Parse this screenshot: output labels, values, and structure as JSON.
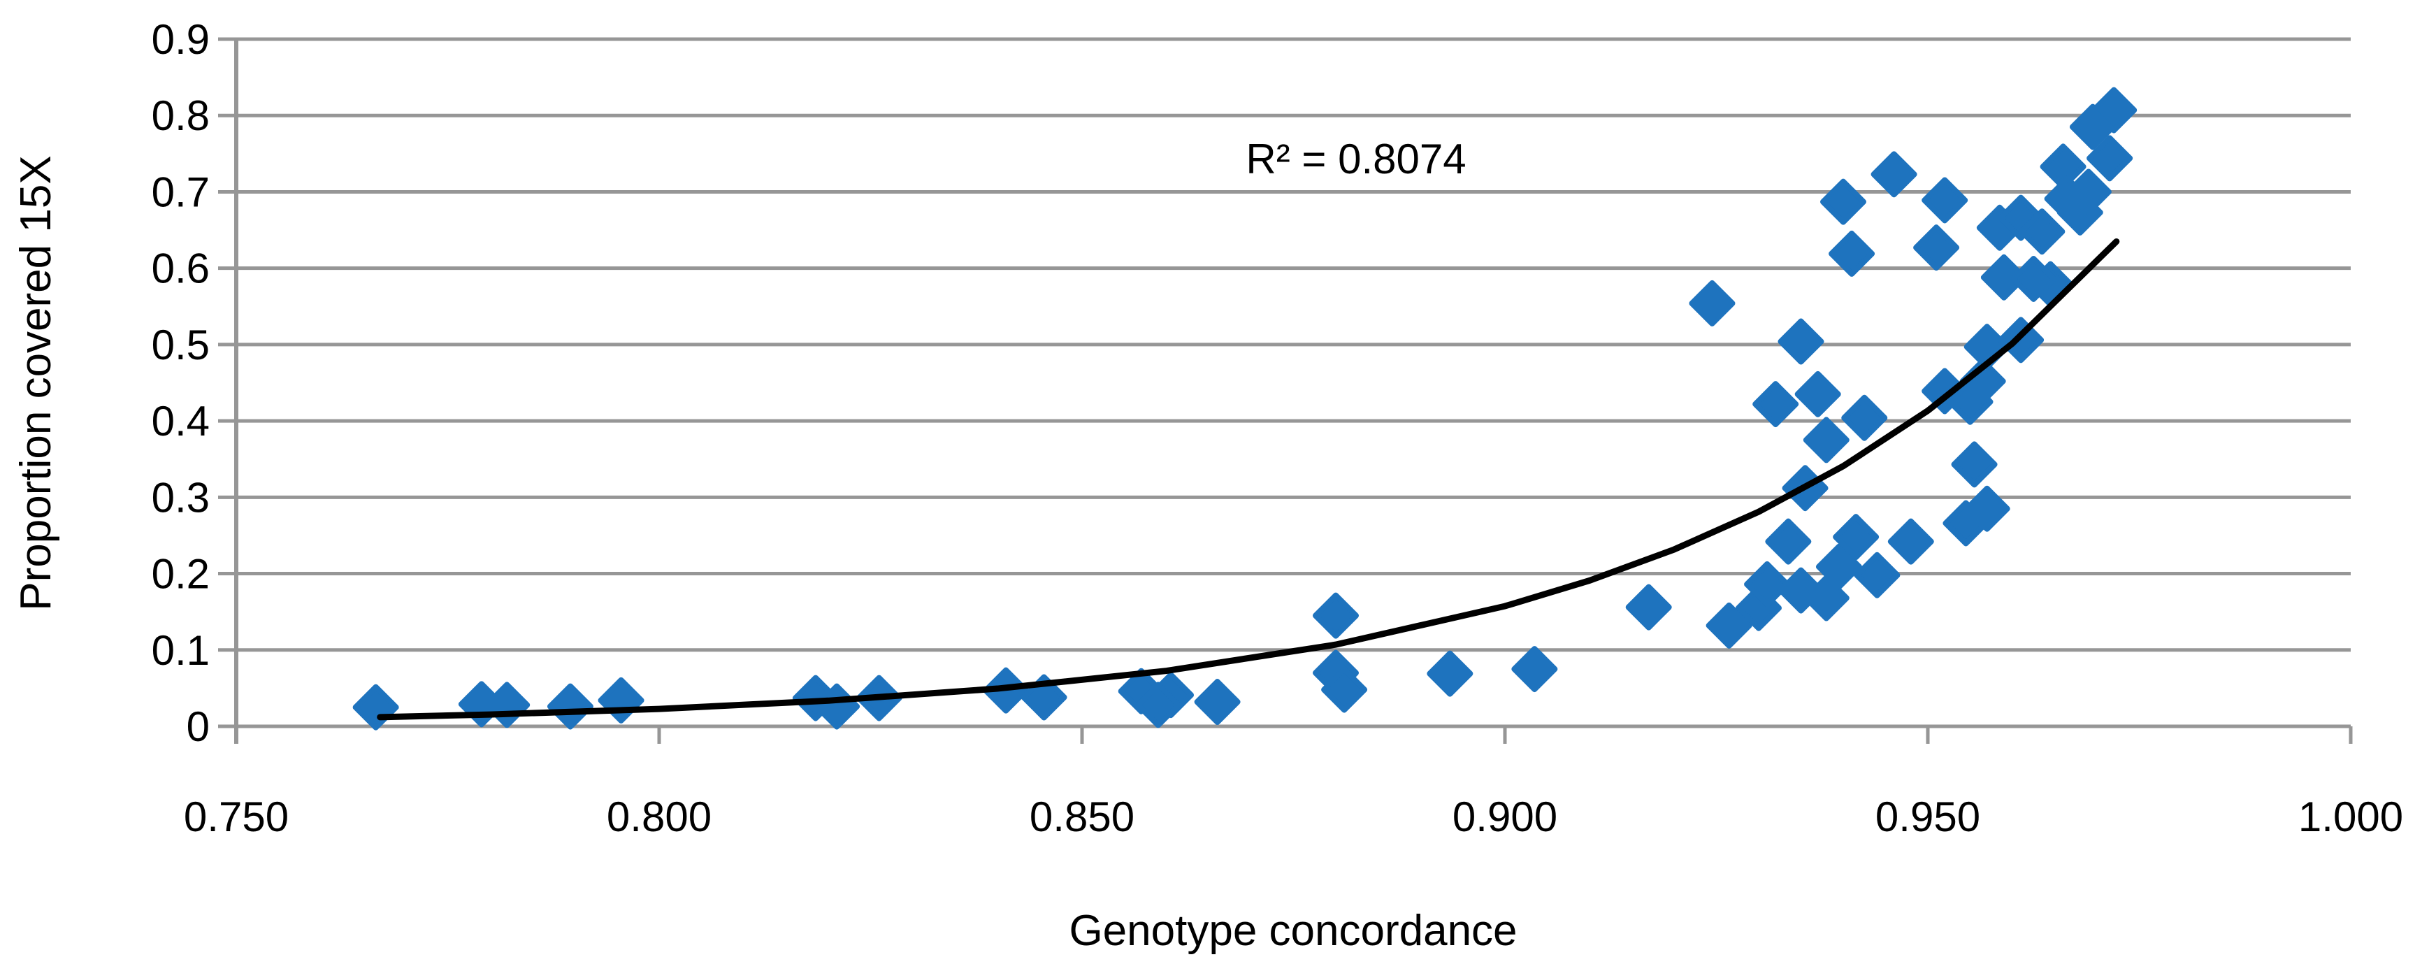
{
  "chart_data": {
    "type": "scatter",
    "title": "",
    "xlabel": "Genotype concordance",
    "ylabel": "Proportion  covered 15X",
    "annotation": "R² = 0.8074",
    "xlim": [
      0.75,
      1.0
    ],
    "ylim": [
      0,
      0.9
    ],
    "x_ticks": [
      "0.750",
      "0.800",
      "0.850",
      "0.900",
      "0.950",
      "1.000"
    ],
    "y_ticks": [
      "0",
      "0.1",
      "0.2",
      "0.3",
      "0.4",
      "0.5",
      "0.6",
      "0.7",
      "0.8",
      "0.9"
    ],
    "grid": "horizontal",
    "legend_position": "none",
    "marker": "diamond",
    "marker_color": "#1E73BE",
    "trendline_color": "#000000",
    "gridline_color": "#969696",
    "points": [
      [
        0.7665,
        0.025
      ],
      [
        0.779,
        0.029
      ],
      [
        0.782,
        0.028
      ],
      [
        0.7895,
        0.026
      ],
      [
        0.7955,
        0.034
      ],
      [
        0.8185,
        0.037
      ],
      [
        0.821,
        0.026
      ],
      [
        0.826,
        0.037
      ],
      [
        0.841,
        0.047
      ],
      [
        0.8455,
        0.038
      ],
      [
        0.857,
        0.046
      ],
      [
        0.8605,
        0.041
      ],
      [
        0.859,
        0.028
      ],
      [
        0.866,
        0.032
      ],
      [
        0.88,
        0.145
      ],
      [
        0.88,
        0.07
      ],
      [
        0.881,
        0.048
      ],
      [
        0.8935,
        0.069
      ],
      [
        0.9035,
        0.075
      ],
      [
        0.917,
        0.156
      ],
      [
        0.9265,
        0.132
      ],
      [
        0.93,
        0.155
      ],
      [
        0.931,
        0.186
      ],
      [
        0.935,
        0.178
      ],
      [
        0.938,
        0.168
      ],
      [
        0.9335,
        0.242
      ],
      [
        0.9395,
        0.209
      ],
      [
        0.9415,
        0.248
      ],
      [
        0.944,
        0.198
      ],
      [
        0.948,
        0.242
      ],
      [
        0.9355,
        0.312
      ],
      [
        0.932,
        0.422
      ],
      [
        0.937,
        0.435
      ],
      [
        0.938,
        0.375
      ],
      [
        0.9425,
        0.404
      ],
      [
        0.935,
        0.504
      ],
      [
        0.9245,
        0.554
      ],
      [
        0.9545,
        0.266
      ],
      [
        0.957,
        0.285
      ],
      [
        0.9555,
        0.343
      ],
      [
        0.952,
        0.439
      ],
      [
        0.955,
        0.425
      ],
      [
        0.9565,
        0.452
      ],
      [
        0.957,
        0.497
      ],
      [
        0.961,
        0.506
      ],
      [
        0.9645,
        0.579
      ],
      [
        0.959,
        0.588
      ],
      [
        0.9625,
        0.586
      ],
      [
        0.941,
        0.619
      ],
      [
        0.951,
        0.627
      ],
      [
        0.9585,
        0.653
      ],
      [
        0.961,
        0.666
      ],
      [
        0.9635,
        0.648
      ],
      [
        0.94,
        0.687
      ],
      [
        0.946,
        0.723
      ],
      [
        0.952,
        0.689
      ],
      [
        0.966,
        0.733
      ],
      [
        0.968,
        0.673
      ],
      [
        0.9665,
        0.691
      ],
      [
        0.969,
        0.7
      ],
      [
        0.9695,
        0.785
      ],
      [
        0.9715,
        0.744
      ],
      [
        0.972,
        0.807
      ]
    ],
    "trendline": [
      [
        0.767,
        0.012
      ],
      [
        0.78,
        0.0155
      ],
      [
        0.8,
        0.0228
      ],
      [
        0.82,
        0.0336
      ],
      [
        0.84,
        0.0494
      ],
      [
        0.86,
        0.0727
      ],
      [
        0.88,
        0.107
      ],
      [
        0.9,
        0.1574
      ],
      [
        0.91,
        0.1909
      ],
      [
        0.92,
        0.2316
      ],
      [
        0.93,
        0.281
      ],
      [
        0.94,
        0.3408
      ],
      [
        0.95,
        0.4134
      ],
      [
        0.96,
        0.5014
      ],
      [
        0.9723,
        0.635
      ]
    ]
  }
}
